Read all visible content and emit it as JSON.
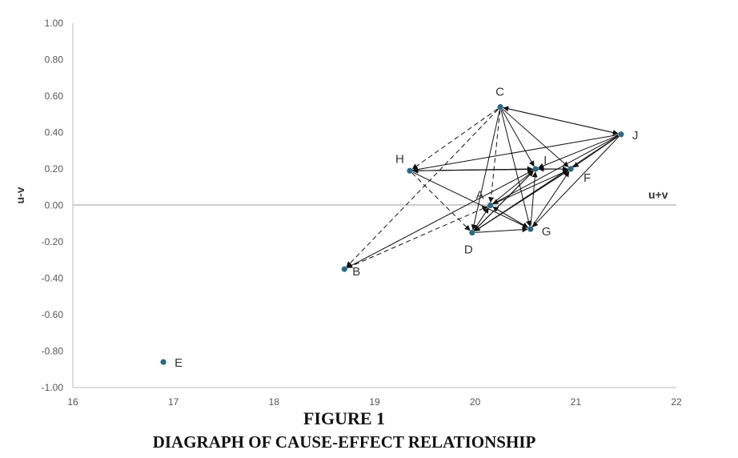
{
  "chart_data": {
    "type": "scatter",
    "title": "",
    "xlabel": "u+v",
    "ylabel": "u-v",
    "xlim": [
      16,
      22
    ],
    "ylim": [
      -1.0,
      1.0
    ],
    "x_ticks": [
      "16",
      "17",
      "18",
      "19",
      "20",
      "21",
      "22"
    ],
    "y_ticks": [
      "-1.00",
      "-0.80",
      "-0.60",
      "-0.40",
      "-0.20",
      "0.00",
      "0.20",
      "0.40",
      "0.60",
      "0.80",
      "1.00"
    ],
    "grid": false,
    "points": [
      {
        "label": "A",
        "x": 20.15,
        "y": 0.0
      },
      {
        "label": "B",
        "x": 18.7,
        "y": -0.35
      },
      {
        "label": "C",
        "x": 20.25,
        "y": 0.54
      },
      {
        "label": "D",
        "x": 19.97,
        "y": -0.15
      },
      {
        "label": "E",
        "x": 16.9,
        "y": -0.86
      },
      {
        "label": "F",
        "x": 20.95,
        "y": 0.2
      },
      {
        "label": "G",
        "x": 20.55,
        "y": -0.13
      },
      {
        "label": "H",
        "x": 19.35,
        "y": 0.19
      },
      {
        "label": "I",
        "x": 20.6,
        "y": 0.2
      },
      {
        "label": "J",
        "x": 21.45,
        "y": 0.39
      }
    ],
    "relations": [
      {
        "from": "C",
        "to": "I",
        "style": "solid"
      },
      {
        "from": "C",
        "to": "F",
        "style": "solid"
      },
      {
        "from": "C",
        "to": "G",
        "style": "solid"
      },
      {
        "from": "C",
        "to": "J",
        "style": "solid"
      },
      {
        "from": "C",
        "to": "D",
        "style": "solid"
      },
      {
        "from": "C",
        "to": "A",
        "style": "dashed"
      },
      {
        "from": "C",
        "to": "H",
        "style": "dashed"
      },
      {
        "from": "C",
        "to": "B",
        "style": "dashed"
      },
      {
        "from": "J",
        "to": "H",
        "style": "solid"
      },
      {
        "from": "J",
        "to": "I",
        "style": "solid"
      },
      {
        "from": "J",
        "to": "F",
        "style": "solid"
      },
      {
        "from": "J",
        "to": "A",
        "style": "solid"
      },
      {
        "from": "J",
        "to": "D",
        "style": "solid"
      },
      {
        "from": "J",
        "to": "G",
        "style": "solid"
      },
      {
        "from": "J",
        "to": "C",
        "style": "solid"
      },
      {
        "from": "I",
        "to": "H",
        "style": "solid"
      },
      {
        "from": "F",
        "to": "H",
        "style": "solid"
      },
      {
        "from": "H",
        "to": "G",
        "style": "solid"
      },
      {
        "from": "H",
        "to": "D",
        "style": "dashed"
      },
      {
        "from": "H",
        "to": "I",
        "style": "solid"
      },
      {
        "from": "A",
        "to": "G",
        "style": "solid"
      },
      {
        "from": "A",
        "to": "I",
        "style": "solid"
      },
      {
        "from": "A",
        "to": "F",
        "style": "solid"
      },
      {
        "from": "D",
        "to": "A",
        "style": "solid"
      },
      {
        "from": "D",
        "to": "G",
        "style": "solid"
      },
      {
        "from": "D",
        "to": "I",
        "style": "solid"
      },
      {
        "from": "D",
        "to": "F",
        "style": "solid"
      },
      {
        "from": "G",
        "to": "I",
        "style": "solid"
      },
      {
        "from": "G",
        "to": "F",
        "style": "solid"
      },
      {
        "from": "G",
        "to": "A",
        "style": "solid"
      },
      {
        "from": "B",
        "to": "I",
        "style": "dashed"
      },
      {
        "from": "B",
        "to": "A",
        "style": "dashed"
      },
      {
        "from": "I",
        "to": "B",
        "style": "dashed"
      },
      {
        "from": "F",
        "to": "I",
        "style": "solid"
      },
      {
        "from": "I",
        "to": "F",
        "style": "solid"
      },
      {
        "from": "F",
        "to": "D",
        "style": "solid"
      },
      {
        "from": "I",
        "to": "D",
        "style": "solid"
      }
    ],
    "marker_color": "#2a6b86"
  },
  "caption": {
    "figure_number": "FIGURE 1",
    "figure_title": "DIAGRAPH OF CAUSE-EFFECT RELATIONSHIP"
  }
}
